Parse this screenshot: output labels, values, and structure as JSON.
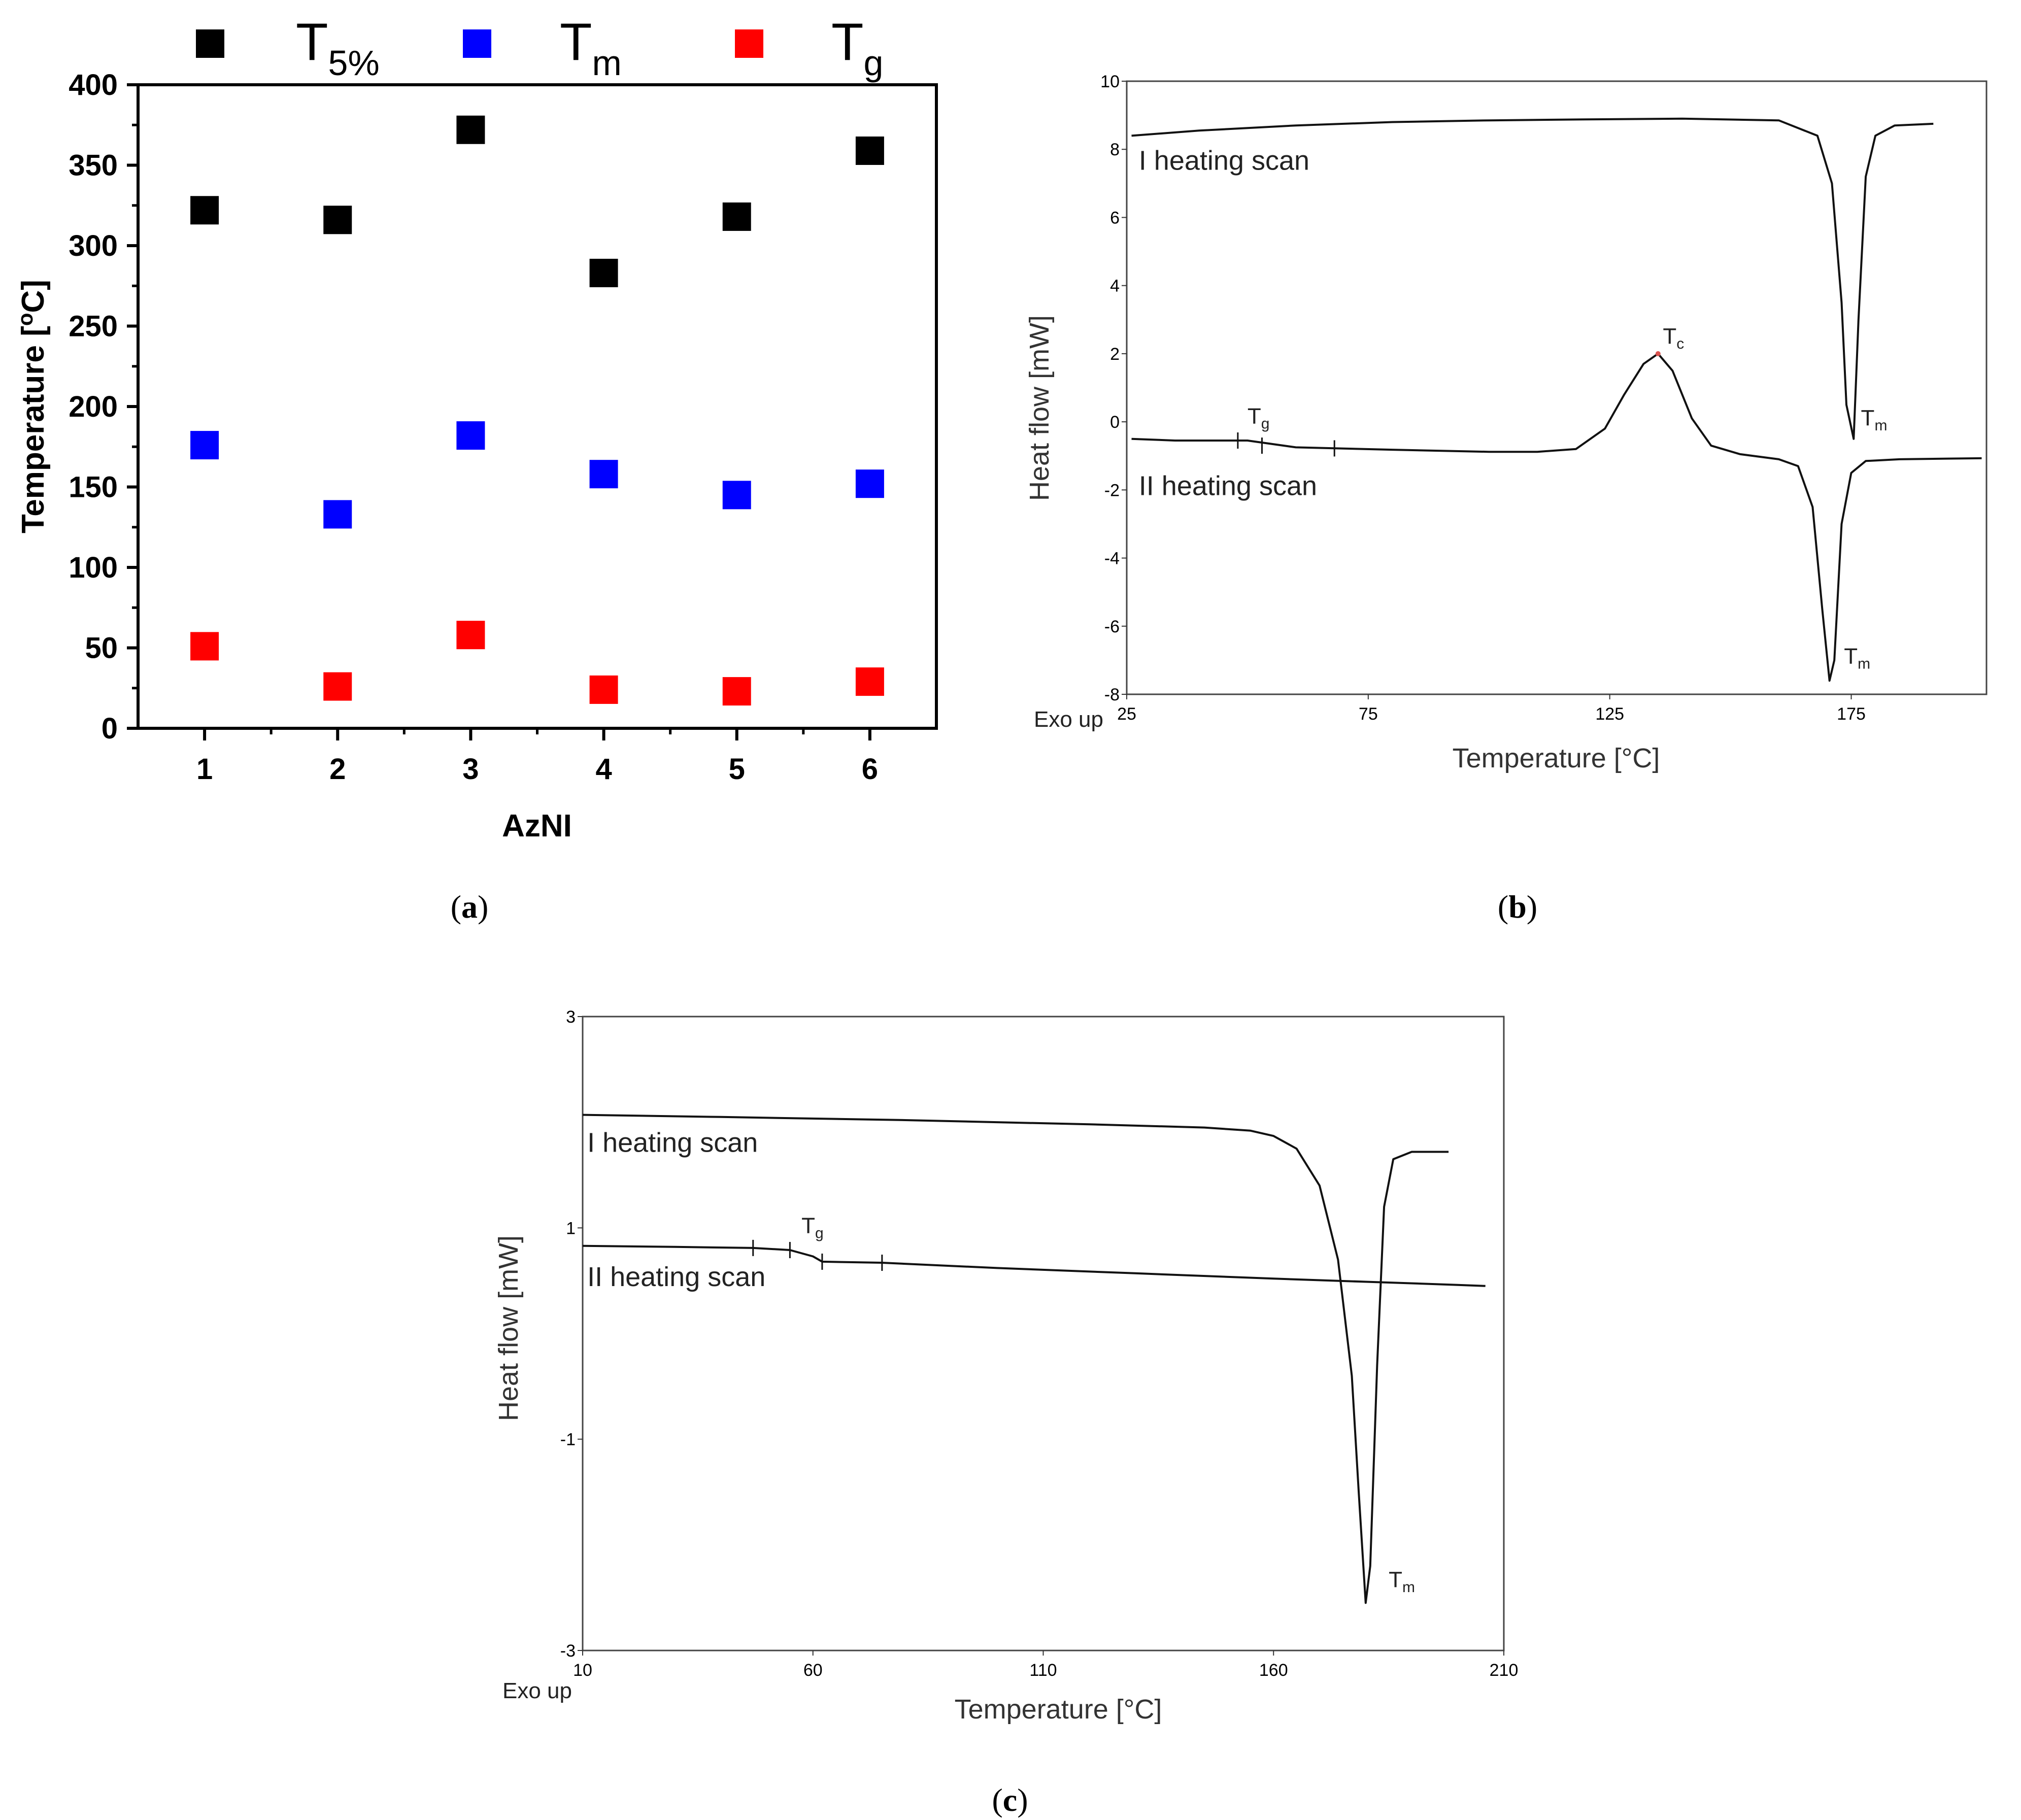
{
  "chart_data": [
    {
      "panel": "a",
      "caption_letter": "a",
      "type": "scatter",
      "xlabel": "AzNI",
      "ylabel": "Temperature [°C]",
      "ylabel_unit_superscript": "o",
      "ylabel_parts": [
        "Temperature [",
        "o",
        "C]"
      ],
      "xlim": [
        0.5,
        6.5
      ],
      "ylim": [
        0,
        400
      ],
      "xticks": [
        "1",
        "2",
        "3",
        "4",
        "5",
        "6"
      ],
      "yticks": [
        "0",
        "50",
        "100",
        "150",
        "200",
        "250",
        "300",
        "350",
        "400"
      ],
      "legend_position": "top",
      "series": [
        {
          "name": "T5%",
          "symbol": "T",
          "sub": "5%",
          "color": "#000000",
          "x": [
            1,
            2,
            3,
            4,
            5,
            6
          ],
          "values": [
            322,
            316,
            372,
            283,
            318,
            359
          ]
        },
        {
          "name": "Tm",
          "symbol": "T",
          "sub": "m",
          "color": "#0000ff",
          "x": [
            1,
            2,
            3,
            4,
            5,
            6
          ],
          "values": [
            176,
            133,
            182,
            158,
            145,
            152
          ]
        },
        {
          "name": "Tg",
          "symbol": "T",
          "sub": "g",
          "color": "#ff0000",
          "x": [
            1,
            2,
            3,
            4,
            5,
            6
          ],
          "values": [
            51,
            26,
            58,
            24,
            23,
            29
          ]
        }
      ]
    },
    {
      "panel": "b",
      "caption_letter": "b",
      "type": "line",
      "xlabel": "Temperature [°C]",
      "ylabel": "Heat flow [mW]",
      "corner_label": "Exo up",
      "xlim": [
        25,
        203
      ],
      "ylim": [
        -8,
        10
      ],
      "xticks": [
        "25",
        "75",
        "125",
        "175"
      ],
      "yticks": [
        "-8",
        "-6",
        "-4",
        "-2",
        "0",
        "2",
        "4",
        "6",
        "8",
        "10"
      ],
      "series": [
        {
          "name": "I heating scan",
          "x": [
            26,
            40,
            60,
            80,
            100,
            120,
            140,
            160,
            168,
            171,
            173,
            174,
            175.5,
            176.5,
            178,
            180,
            184,
            192
          ],
          "values": [
            8.4,
            8.55,
            8.7,
            8.8,
            8.85,
            8.88,
            8.9,
            8.85,
            8.4,
            7.0,
            3.5,
            0.5,
            -0.5,
            3.0,
            7.2,
            8.4,
            8.7,
            8.75
          ]
        },
        {
          "name": "II heating scan",
          "x": [
            26,
            35,
            50,
            60,
            80,
            100,
            110,
            118,
            124,
            128,
            132,
            135,
            138,
            142,
            146,
            152,
            160,
            164,
            167,
            169,
            170.5,
            171.5,
            173,
            175,
            178,
            185,
            195,
            202
          ],
          "values": [
            -0.5,
            -0.55,
            -0.55,
            -0.75,
            -0.82,
            -0.88,
            -0.88,
            -0.8,
            -0.2,
            0.8,
            1.7,
            2.0,
            1.5,
            0.1,
            -0.7,
            -0.95,
            -1.1,
            -1.3,
            -2.5,
            -5.5,
            -7.6,
            -7.0,
            -3.0,
            -1.5,
            -1.15,
            -1.1,
            -1.08,
            -1.07
          ]
        }
      ],
      "annotations": [
        {
          "text": "I heating scan",
          "x": 27.5,
          "y": 7.4
        },
        {
          "text": "II heating scan",
          "x": 27.5,
          "y": -2.15
        },
        {
          "symbol": "T",
          "sub": "g",
          "x": 50,
          "y": -0.05
        },
        {
          "symbol": "T",
          "sub": "c",
          "x": 136,
          "y": 2.3
        },
        {
          "symbol": "T",
          "sub": "m",
          "x": 177,
          "y": -0.1
        },
        {
          "symbol": "T",
          "sub": "m",
          "x": 173.5,
          "y": -7.1
        }
      ]
    },
    {
      "panel": "c",
      "caption_letter": "c",
      "type": "line",
      "xlabel": "Temperature [°C]",
      "ylabel": "Heat flow [mW]",
      "corner_label": "Exo up",
      "xlim": [
        10,
        210
      ],
      "ylim": [
        -3,
        3
      ],
      "xticks": [
        "10",
        "60",
        "110",
        "160",
        "210"
      ],
      "yticks": [
        "-3",
        "-1",
        "1",
        "3"
      ],
      "series": [
        {
          "name": "I heating scan",
          "x": [
            10,
            40,
            80,
            120,
            145,
            155,
            160,
            165,
            170,
            174,
            177,
            178.5,
            180,
            181,
            182.5,
            184,
            186,
            190,
            198
          ],
          "values": [
            2.07,
            2.05,
            2.02,
            1.98,
            1.95,
            1.92,
            1.87,
            1.75,
            1.4,
            0.7,
            -0.4,
            -1.5,
            -2.55,
            -2.2,
            -0.3,
            1.2,
            1.65,
            1.72,
            1.72
          ]
        },
        {
          "name": "II heating scan",
          "x": [
            10,
            30,
            47,
            55,
            60,
            62,
            75,
            100,
            130,
            160,
            180,
            200,
            206
          ],
          "values": [
            0.83,
            0.82,
            0.81,
            0.79,
            0.73,
            0.68,
            0.67,
            0.62,
            0.57,
            0.52,
            0.49,
            0.46,
            0.45
          ]
        }
      ],
      "annotations": [
        {
          "text": "I heating scan",
          "x": 11,
          "y": 1.72
        },
        {
          "text": "II heating scan",
          "x": 11,
          "y": 0.45
        },
        {
          "symbol": "T",
          "sub": "g",
          "x": 57.5,
          "y": 0.95
        },
        {
          "symbol": "T",
          "sub": "m",
          "x": 185,
          "y": -2.4
        }
      ]
    }
  ]
}
